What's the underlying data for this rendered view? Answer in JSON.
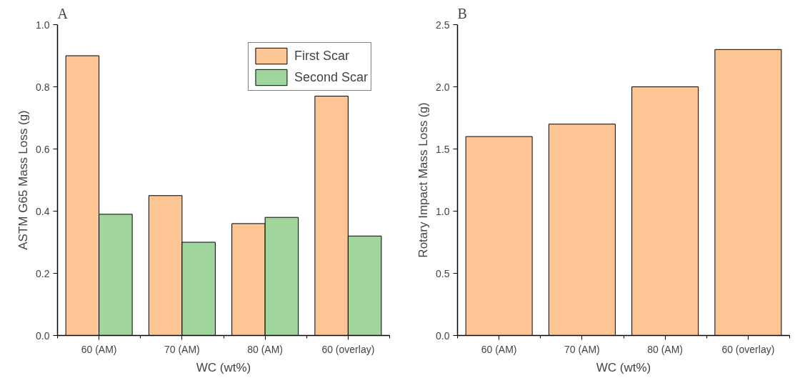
{
  "chart_data": [
    {
      "type": "bar",
      "title": "A",
      "xlabel": "WC (wt%)",
      "ylabel": "ASTM G65 Mass Loss (g)",
      "categories": [
        "60 (AM)",
        "70 (AM)",
        "80 (AM)",
        "60 (overlay)"
      ],
      "series": [
        {
          "name": "First Scar",
          "color": "#fdc593",
          "values": [
            0.9,
            0.45,
            0.36,
            0.77
          ]
        },
        {
          "name": "Second Scar",
          "color": "#a0d69c",
          "values": [
            0.39,
            0.3,
            0.38,
            0.32
          ]
        }
      ],
      "ylim": [
        0,
        1.0
      ],
      "yticks": [
        {
          "value": 0,
          "label": "0.0"
        },
        0.2,
        0.4,
        0.6,
        0.8,
        {
          "value": 1,
          "label": "1.0"
        }
      ],
      "grid": false,
      "legend": "top right"
    },
    {
      "type": "bar",
      "title": "B",
      "xlabel": "WC (wt%)",
      "ylabel": "Rotary Impact Mass Loss (g)",
      "categories": [
        "60 (AM)",
        "70 (AM)",
        "80 (AM)",
        "60 (overlay)"
      ],
      "series": [
        {
          "color": "#fdc593",
          "values": [
            1.6,
            1.7,
            2.0,
            2.3
          ]
        }
      ],
      "ylim": [
        0,
        2.5
      ],
      "yticks": [
        {
          "value": 0,
          "label": "0.0"
        },
        0.5,
        {
          "value": 1,
          "label": "1.0"
        },
        1.5,
        {
          "value": 2,
          "label": "2.0"
        },
        2.5
      ],
      "grid": false,
      "legend": false
    }
  ]
}
